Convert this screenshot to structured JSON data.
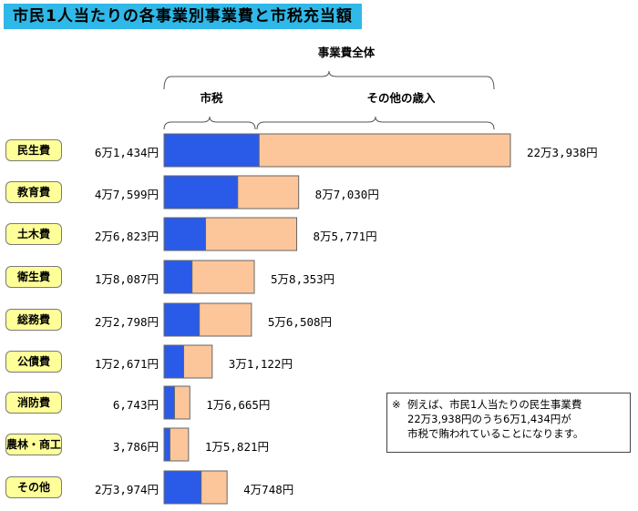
{
  "title": "市民1人当たりの各事業別事業費と市税充当額",
  "chart_data": {
    "type": "bar",
    "stacked": true,
    "orientation": "horizontal",
    "header_total": "事業費全体",
    "header_tax": "市税",
    "header_other": "その他の歳入",
    "categories": [
      "民生費",
      "教育費",
      "土木費",
      "衛生費",
      "総務費",
      "公債費",
      "消防費",
      "農林・商工",
      "その他"
    ],
    "tax_labels": [
      "6万1,434円",
      "4万7,599円",
      "2万6,823円",
      "1万8,087円",
      "2万2,798円",
      "1万2,671円",
      "6,743円",
      "3,786円",
      "2万3,974円"
    ],
    "total_labels": [
      "22万3,938円",
      "8万7,030円",
      "8万5,771円",
      "5万8,353円",
      "5万6,508円",
      "3万1,122円",
      "1万6,665円",
      "1万5,821円",
      "4万748円"
    ],
    "tax_values": [
      61434,
      47599,
      26823,
      18087,
      22798,
      12671,
      6743,
      3786,
      23974
    ],
    "total_values": [
      223938,
      87030,
      85771,
      58353,
      56508,
      31122,
      16665,
      15821,
      40748
    ],
    "series": [
      {
        "name": "市税",
        "color": "#2a5ae8"
      },
      {
        "name": "その他の歳入",
        "color": "#fcc69a"
      }
    ],
    "unit": "円"
  },
  "note": {
    "mark": "※",
    "lines": [
      "例えば、市民1人当たりの民生事業費",
      "22万3,938円のうち6万1,434円が",
      "市税で賄われていることになります。"
    ]
  }
}
